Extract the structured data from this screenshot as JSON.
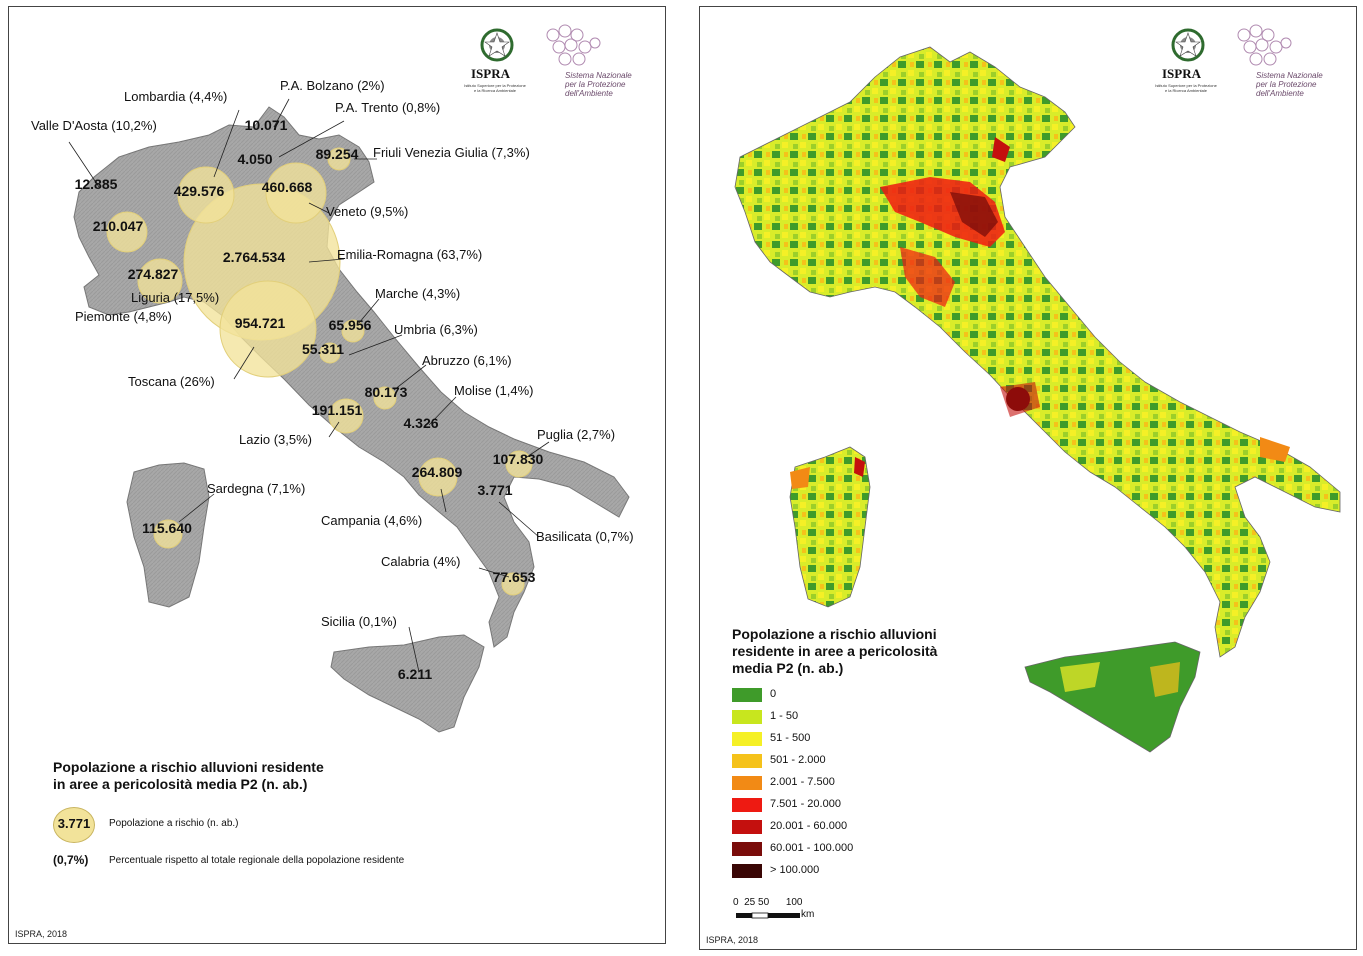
{
  "left_panel": {
    "legend": {
      "title_line1": "Popolazione a rischio alluvioni residente",
      "title_line2": "in aree a pericolosità media P2 (n. ab.)",
      "sample_value": "3.771",
      "sample_desc": "Popolazione a rischio (n. ab.)",
      "percent_sample": "(0,7%)",
      "percent_desc": "Percentuale rispetto al totale regionale della popolazione residente"
    },
    "credit": "ISPRA, 2018",
    "logo": {
      "ispra": "ISPRA"
    },
    "regions": [
      {
        "name": "Valle D'Aosta (10,2%)",
        "value": "12.885"
      },
      {
        "name": "Lombardia (4,4%)",
        "value": "429.576"
      },
      {
        "name": "P.A. Bolzano (2%)",
        "value": "10.071"
      },
      {
        "name": "P.A. Trento (0,8%)",
        "value": "4.050"
      },
      {
        "name": "Friuli Venezia Giulia (7,3%)",
        "value": "89.254"
      },
      {
        "name": "Veneto (9,5%)",
        "value": "460.668"
      },
      {
        "name": "Piemonte (4,8%)",
        "value": "210.047"
      },
      {
        "name": "Liguria (17,5%)",
        "value": "274.827"
      },
      {
        "name": "Emilia-Romagna (63,7%)",
        "value": "2.764.534"
      },
      {
        "name": "Toscana (26%)",
        "value": "954.721"
      },
      {
        "name": "Marche (4,3%)",
        "value": "65.956"
      },
      {
        "name": "Umbria (6,3%)",
        "value": "55.311"
      },
      {
        "name": "Abruzzo (6,1%)",
        "value": "80.173"
      },
      {
        "name": "Molise (1,4%)",
        "value": "4.326"
      },
      {
        "name": "Lazio (3,5%)",
        "value": "191.151"
      },
      {
        "name": "Puglia (2,7%)",
        "value": "107.830"
      },
      {
        "name": "Campania (4,6%)",
        "value": "264.809"
      },
      {
        "name": "Basilicata (0,7%)",
        "value": "3.771"
      },
      {
        "name": "Sardegna (7,1%)",
        "value": "115.640"
      },
      {
        "name": "Calabria (4%)",
        "value": "77.653"
      },
      {
        "name": "Sicilia (0,1%)",
        "value": "6.211"
      }
    ],
    "colors": {
      "bubble": "#f2e39a",
      "land": "#a9a9a9"
    }
  },
  "right_panel": {
    "legend": {
      "title_line1": "Popolazione a rischio alluvioni",
      "title_line2": "residente in aree a pericolosità",
      "title_line3": "media P2  (n. ab.)",
      "classes": [
        {
          "label": "0",
          "color": "#3f9b2a"
        },
        {
          "label": "1 - 50",
          "color": "#c8e61e"
        },
        {
          "label": "51 - 500",
          "color": "#f5f026"
        },
        {
          "label": "501 - 2.000",
          "color": "#f5c21a"
        },
        {
          "label": "2.001 - 7.500",
          "color": "#f28a15"
        },
        {
          "label": "7.501 - 20.000",
          "color": "#ee1a12"
        },
        {
          "label": "20.001 - 60.000",
          "color": "#c4100e"
        },
        {
          "label": "60.001 - 100.000",
          "color": "#7a0c0a"
        },
        {
          "label": "> 100.000",
          "color": "#3a0605"
        }
      ]
    },
    "scale": {
      "ticks": "0  25 50      100",
      "unit": "km"
    },
    "credit": "ISPRA, 2018",
    "logo": {
      "ispra": "ISPRA"
    }
  }
}
